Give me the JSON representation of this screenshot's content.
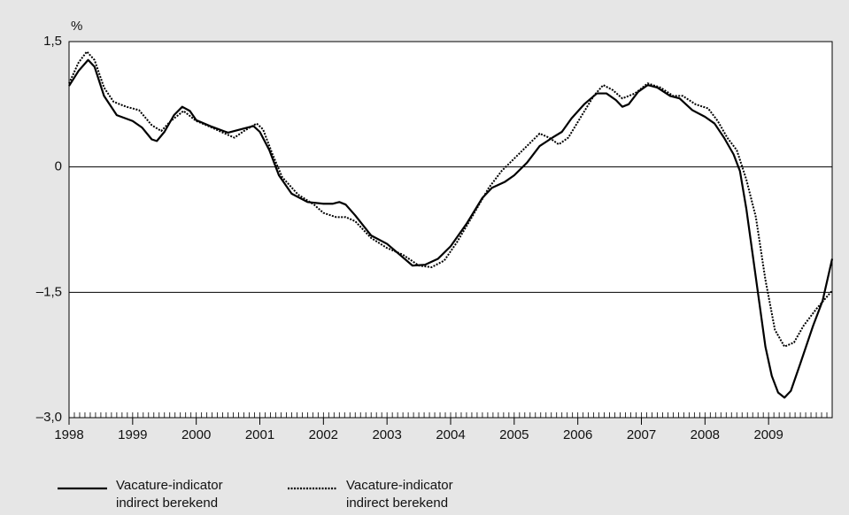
{
  "chart_data": {
    "type": "line",
    "y_label": "%",
    "xlim": [
      1998,
      2010
    ],
    "xticks": [
      1998,
      1999,
      2000,
      2001,
      2002,
      2003,
      2004,
      2005,
      2006,
      2007,
      2008,
      2009
    ],
    "ylim": [
      -3.0,
      1.5
    ],
    "yticks": [
      {
        "value": 1.5,
        "label": "1,5"
      },
      0,
      {
        "value": -1.5,
        "label": "–1,5"
      },
      {
        "value": -3.0,
        "label": "–3,0"
      }
    ],
    "grid": true,
    "series": [
      {
        "name": "Vacature-indicator indirect berekend",
        "color": "#000000",
        "line_style": "solid",
        "x": [
          1998.0,
          1998.15,
          1998.3,
          1998.4,
          1998.55,
          1998.75,
          1999.0,
          1999.15,
          1999.3,
          1999.38,
          1999.5,
          1999.65,
          1999.78,
          1999.9,
          2000.0,
          2000.25,
          2000.5,
          2000.75,
          2000.9,
          2001.0,
          2001.15,
          2001.3,
          2001.5,
          2001.75,
          2002.0,
          2002.15,
          2002.25,
          2002.35,
          2002.5,
          2002.75,
          2003.0,
          2003.2,
          2003.4,
          2003.6,
          2003.8,
          2004.0,
          2004.25,
          2004.5,
          2004.65,
          2004.85,
          2005.0,
          2005.2,
          2005.4,
          2005.6,
          2005.75,
          2005.9,
          2006.1,
          2006.3,
          2006.45,
          2006.6,
          2006.7,
          2006.8,
          2006.95,
          2007.1,
          2007.25,
          2007.45,
          2007.6,
          2007.8,
          2008.0,
          2008.15,
          2008.3,
          2008.45,
          2008.55,
          2008.65,
          2008.75,
          2008.85,
          2008.95,
          2009.05,
          2009.15,
          2009.25,
          2009.35,
          2009.5,
          2009.7,
          2009.85,
          2010.0
        ],
        "values": [
          0.97,
          1.15,
          1.28,
          1.2,
          0.85,
          0.62,
          0.55,
          0.47,
          0.33,
          0.31,
          0.42,
          0.62,
          0.72,
          0.67,
          0.56,
          0.48,
          0.41,
          0.46,
          0.49,
          0.42,
          0.2,
          -0.1,
          -0.32,
          -0.42,
          -0.44,
          -0.44,
          -0.42,
          -0.45,
          -0.58,
          -0.82,
          -0.92,
          -1.05,
          -1.18,
          -1.17,
          -1.1,
          -0.95,
          -0.68,
          -0.37,
          -0.25,
          -0.18,
          -0.1,
          0.05,
          0.25,
          0.35,
          0.42,
          0.58,
          0.75,
          0.88,
          0.88,
          0.8,
          0.72,
          0.75,
          0.9,
          0.98,
          0.95,
          0.85,
          0.82,
          0.68,
          0.6,
          0.52,
          0.35,
          0.15,
          -0.05,
          -0.5,
          -1.05,
          -1.6,
          -2.15,
          -2.5,
          -2.7,
          -2.76,
          -2.68,
          -2.35,
          -1.9,
          -1.6,
          -1.1
        ]
      },
      {
        "name": "Vacature-indicator indirect berekend",
        "color": "#000000",
        "line_style": "dotted",
        "x": [
          1998.0,
          1998.15,
          1998.28,
          1998.4,
          1998.55,
          1998.7,
          1998.9,
          1999.1,
          1999.3,
          1999.45,
          1999.6,
          1999.8,
          2000.0,
          2000.25,
          2000.45,
          2000.6,
          2000.75,
          2000.95,
          2001.05,
          2001.2,
          2001.35,
          2001.6,
          2001.85,
          2002.0,
          2002.2,
          2002.35,
          2002.5,
          2002.75,
          2003.0,
          2003.25,
          2003.5,
          2003.7,
          2003.9,
          2004.1,
          2004.35,
          2004.6,
          2004.8,
          2005.0,
          2005.2,
          2005.4,
          2005.55,
          2005.7,
          2005.85,
          2006.05,
          2006.25,
          2006.4,
          2006.55,
          2006.7,
          2006.9,
          2007.1,
          2007.3,
          2007.5,
          2007.65,
          2007.85,
          2008.05,
          2008.2,
          2008.35,
          2008.5,
          2008.65,
          2008.8,
          2008.95,
          2009.1,
          2009.25,
          2009.4,
          2009.55,
          2009.75,
          2010.0
        ],
        "values": [
          1.0,
          1.25,
          1.38,
          1.28,
          0.95,
          0.78,
          0.72,
          0.68,
          0.5,
          0.43,
          0.55,
          0.67,
          0.55,
          0.47,
          0.4,
          0.35,
          0.43,
          0.52,
          0.45,
          0.15,
          -0.12,
          -0.33,
          -0.45,
          -0.55,
          -0.6,
          -0.6,
          -0.65,
          -0.85,
          -0.97,
          -1.05,
          -1.18,
          -1.2,
          -1.12,
          -0.9,
          -0.58,
          -0.25,
          -0.05,
          0.1,
          0.25,
          0.4,
          0.35,
          0.27,
          0.35,
          0.6,
          0.85,
          0.98,
          0.92,
          0.82,
          0.88,
          1.0,
          0.95,
          0.85,
          0.85,
          0.75,
          0.7,
          0.55,
          0.35,
          0.2,
          -0.15,
          -0.6,
          -1.35,
          -1.95,
          -2.15,
          -2.1,
          -1.9,
          -1.7,
          -1.48
        ]
      }
    ]
  }
}
